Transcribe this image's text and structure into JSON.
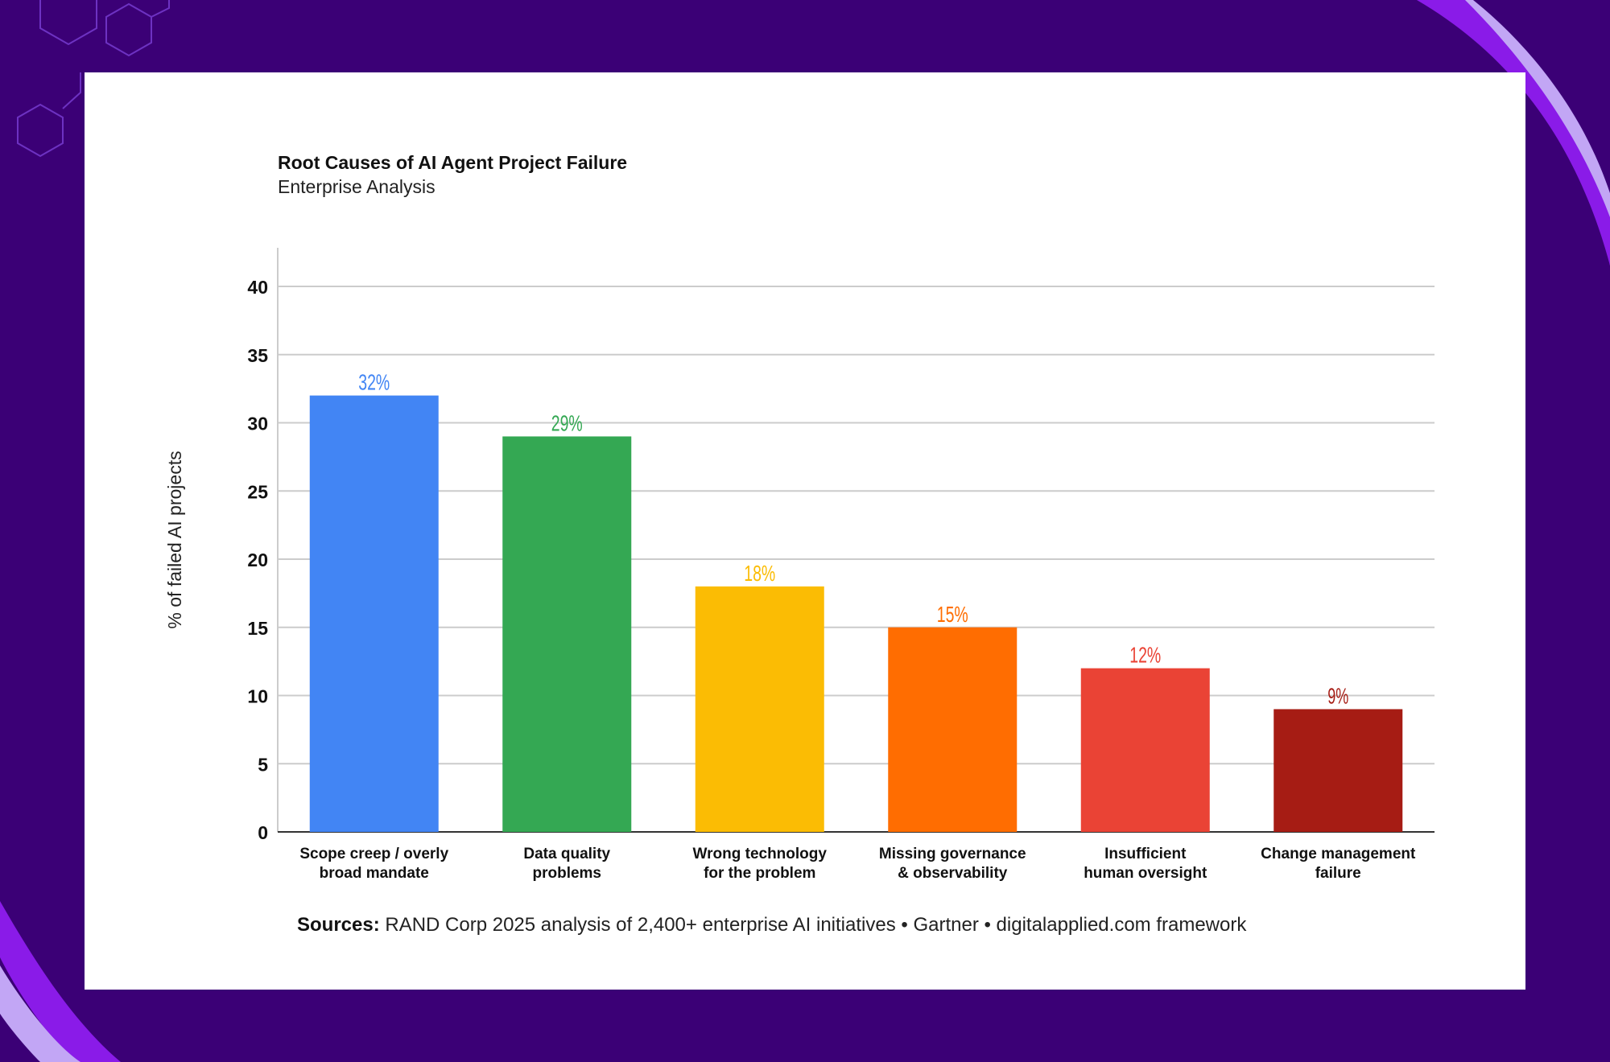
{
  "colors": {
    "page_background": "#3b0076",
    "card_background": "#ffffff",
    "accent_violet": "#8a1be8",
    "accent_lilac": "#c2a6f5"
  },
  "chart_data": {
    "type": "bar",
    "title": "Root Causes of AI Agent Project Failure",
    "subtitle": "Enterprise Analysis",
    "xlabel": "",
    "ylabel": "% of failed AI projects",
    "ylim": [
      0,
      43
    ],
    "yticks": [
      0,
      5,
      10,
      15,
      20,
      25,
      30,
      35,
      40
    ],
    "grid": true,
    "legend": "none",
    "categories": [
      [
        "Scope creep / overly",
        "broad mandate"
      ],
      [
        "Data quality",
        "problems"
      ],
      [
        "Wrong technology",
        "for the problem"
      ],
      [
        "Missing governance",
        "& observability"
      ],
      [
        "Insufficient",
        "human oversight"
      ],
      [
        "Change management",
        "failure"
      ]
    ],
    "values": [
      32,
      29,
      18,
      15,
      12,
      9
    ],
    "value_labels": [
      "32%",
      "29%",
      "18%",
      "15%",
      "12%",
      "9%"
    ],
    "bar_colors": [
      "#4285f4",
      "#34a853",
      "#fbbc04",
      "#ff6d01",
      "#ea4335",
      "#a61c14"
    ]
  },
  "footer": {
    "sources_label": "Sources:",
    "sources_text": " RAND Corp 2025 analysis of 2,400+ enterprise AI initiatives • Gartner • digitalapplied.com framework"
  }
}
